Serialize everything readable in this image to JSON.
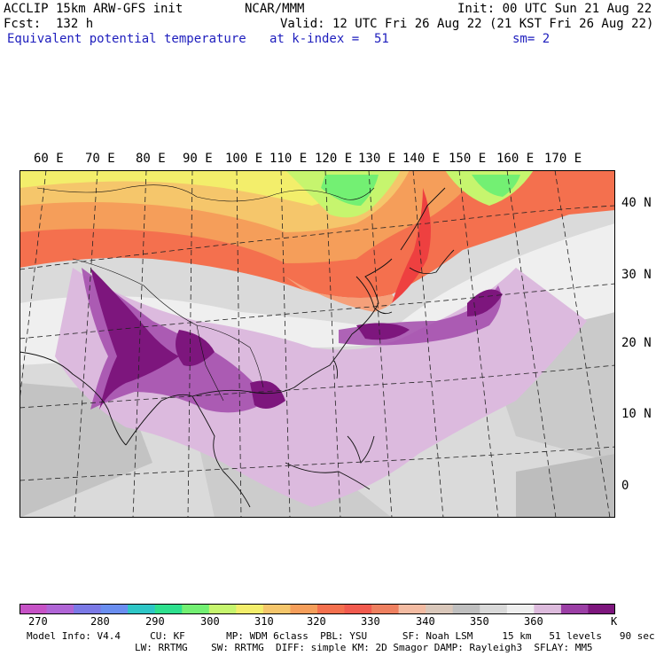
{
  "header": {
    "model": "ACCLIP 15km ARW-GFS init",
    "org": "NCAR/MMM",
    "init": "Init: 00 UTC Sun 21 Aug 22",
    "fcst": "Fcst:  132 h",
    "valid": "Valid: 12 UTC Fri 26 Aug 22 (21 KST Fri 26 Aug 22)",
    "field": "Equivalent potential temperature",
    "level": "at k-index =  51",
    "smooth": "sm= 2"
  },
  "map": {
    "lon_labels": [
      "60 E",
      "70 E",
      "80 E",
      "90 E",
      "100 E",
      "110 E",
      "120 E",
      "130 E",
      "140 E",
      "150 E",
      "160 E",
      "170 E"
    ],
    "lat_labels": [
      "40 N",
      "30 N",
      "20 N",
      "10 N",
      "0"
    ]
  },
  "colorbar": {
    "colors": [
      "#c652c6",
      "#b065d6",
      "#7b79e6",
      "#6a8ef0",
      "#2ec6c6",
      "#2ee08e",
      "#73f073",
      "#c6f56e",
      "#f3ee6b",
      "#f5c66b",
      "#f59e5a",
      "#f4704e",
      "#f15a4e",
      "#ee8060",
      "#f3bba2",
      "#d9c7ba",
      "#bfbfbf",
      "#d9d9d9",
      "#efefef",
      "#ddbbdd",
      "#9b3fa5",
      "#7d167d"
    ],
    "ticks": [
      "270",
      "280",
      "290",
      "300",
      "310",
      "320",
      "330",
      "340",
      "350",
      "360",
      "K"
    ]
  },
  "footer": {
    "line1": "Model Info: V4.4     CU: KF       MP: WDM 6class  PBL: YSU      SF: Noah LSM     15 km   51 levels   90 sec",
    "line2": "LW: RRTMG    SW: RRTMG  DIFF: simple KM: 2D Smagor DAMP: Rayleigh3  SFLAY: MM5"
  }
}
